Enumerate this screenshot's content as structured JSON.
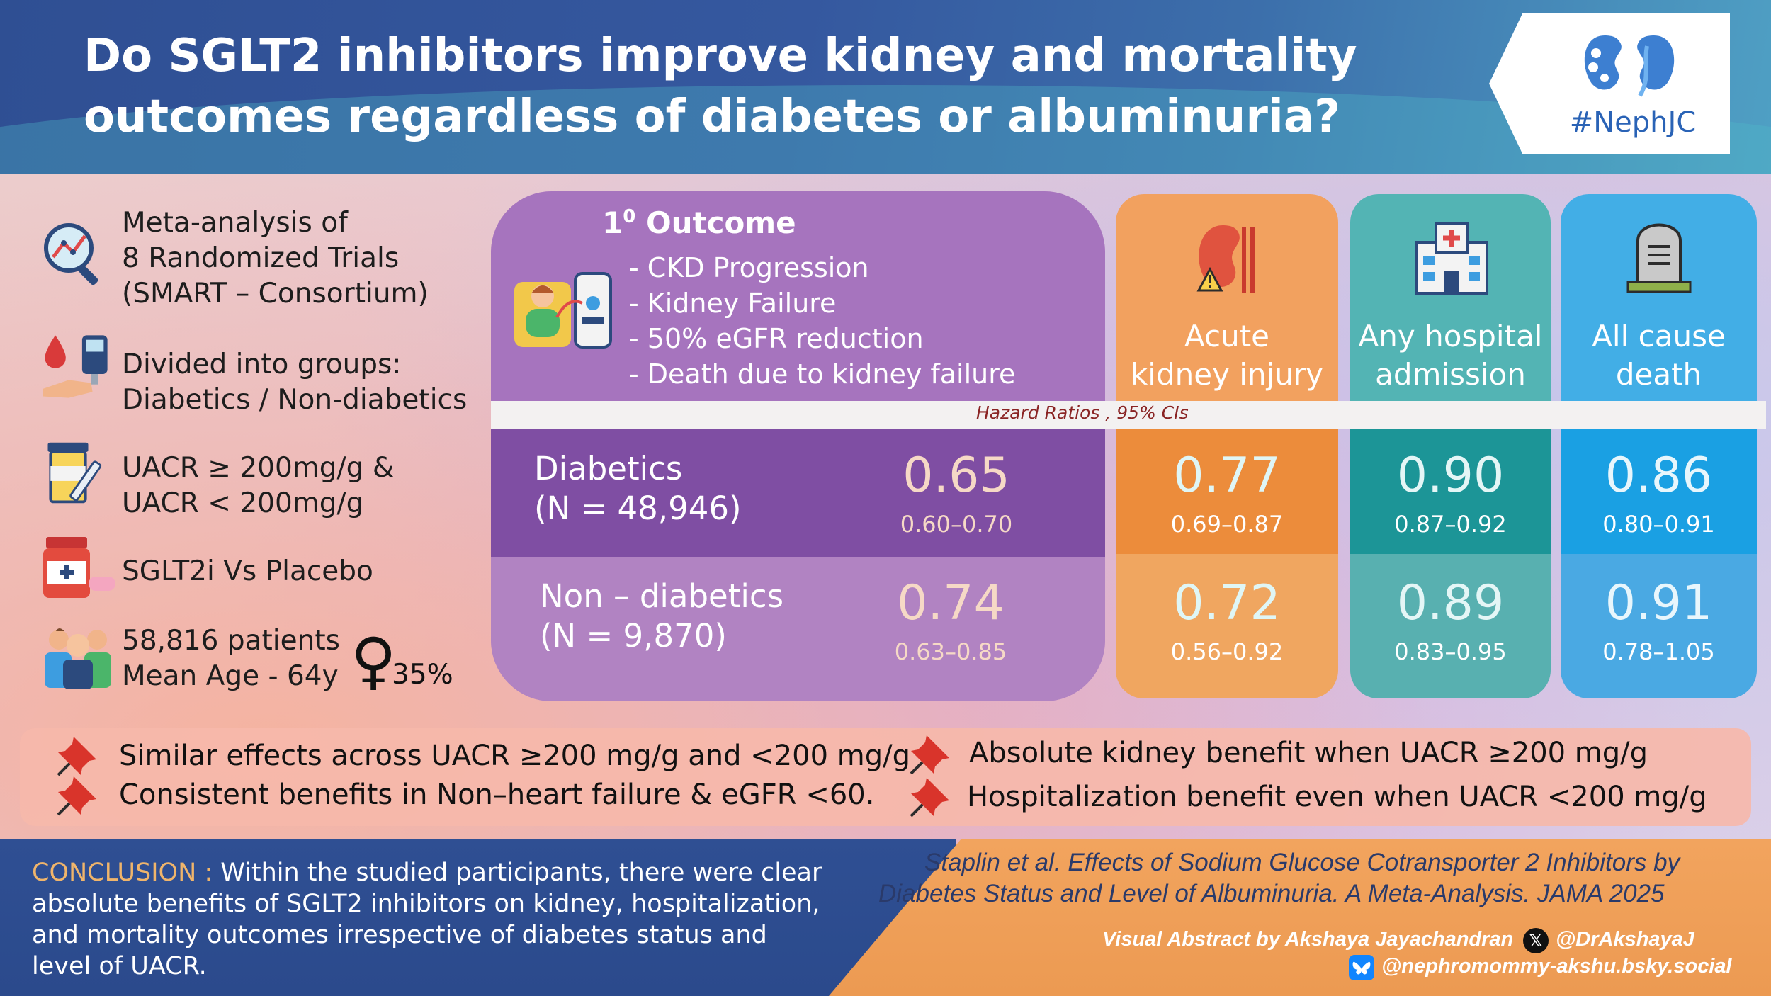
{
  "header": {
    "title_line1": "Do SGLT2 inhibitors improve kidney and mortality",
    "title_line2": "outcomes regardless of diabetes or albuminuria?",
    "logo_text": "#NephJC"
  },
  "study_summary": {
    "items": [
      {
        "icon": "magnifier-chart-icon",
        "lines": [
          "Meta-analysis of",
          "8 Randomized Trials",
          "(SMART – Consortium)"
        ]
      },
      {
        "icon": "glucometer-icon",
        "lines": [
          "Divided into groups:",
          "Diabetics / Non-diabetics"
        ]
      },
      {
        "icon": "urine-sample-icon",
        "lines": [
          "UACR ≥ 200mg/g &",
          "UACR < 200mg/g"
        ]
      },
      {
        "icon": "medicine-bottle-icon",
        "lines": [
          "SGLT2i Vs Placebo"
        ]
      },
      {
        "icon": "patients-group-icon",
        "lines": [
          "58,816 patients",
          "Mean Age - 64y"
        ]
      }
    ],
    "female_symbol": "♀",
    "female_percent": "35%"
  },
  "primary_outcome": {
    "title_base": "1",
    "title_sup": "0",
    "title_rest": " Outcome",
    "components": [
      "- CKD Progression",
      "- Kidney Failure",
      "- 50% eGFR reduction",
      "- Death due to kidney failure"
    ]
  },
  "hr_label": "Hazard Ratios , 95% CIs",
  "groups": [
    {
      "name": "Diabetics",
      "n": "(N = 48,946)"
    },
    {
      "name": "Non – diabetics",
      "n": "(N = 9,870)"
    }
  ],
  "results": {
    "primary": {
      "diabetics": {
        "hr": "0.65",
        "ci": "0.60–0.70"
      },
      "non_diabetics": {
        "hr": "0.74",
        "ci": "0.63–0.85"
      }
    },
    "aki": {
      "heading_line1": "Acute",
      "heading_line2": "kidney injury",
      "icon": "kidney-warning-icon",
      "diabetics": {
        "hr": "0.77",
        "ci": "0.69–0.87"
      },
      "non_diabetics": {
        "hr": "0.72",
        "ci": "0.56–0.92"
      }
    },
    "hospital": {
      "heading_line1": "Any hospital",
      "heading_line2": "admission",
      "icon": "hospital-icon",
      "diabetics": {
        "hr": "0.90",
        "ci": "0.87–0.92"
      },
      "non_diabetics": {
        "hr": "0.89",
        "ci": "0.83–0.95"
      }
    },
    "death": {
      "heading_line1": "All cause",
      "heading_line2": "death",
      "icon": "gravestone-icon",
      "diabetics": {
        "hr": "0.86",
        "ci": "0.80–0.91"
      },
      "non_diabetics": {
        "hr": "0.91",
        "ci": "0.78–1.05"
      }
    }
  },
  "findings": [
    "Similar effects across UACR ≥200 mg/g and <200 mg/g",
    "Consistent benefits in Non–heart failure & eGFR <60.",
    "Absolute kidney benefit when UACR ≥200 mg/g",
    "Hospitalization benefit even when UACR <200 mg/g"
  ],
  "conclusion": {
    "label": "CONCLUSION :",
    "text_line1": " Within the studied participants, there were clear",
    "text_line2": "absolute benefits of SGLT2 inhibitors on kidney, hospitalization,",
    "text_line3": "and mortality outcomes irrespective of diabetes status and",
    "text_line4": "level of UACR."
  },
  "citation": {
    "line1": "Staplin et al. Effects of Sodium Glucose Cotransporter 2 Inhibitors by",
    "line2": "Diabetes Status and Level of Albuminuria. A Meta-Analysis. JAMA 2025"
  },
  "credits": {
    "visual_by": "Visual Abstract by Akshaya Jayachandran",
    "x_handle": "@DrAkshayaJ",
    "bsky_handle": "@nephromommy-akshu.bsky.social"
  },
  "colors": {
    "primary_top": "#a674be",
    "primary_diabetic": "#7f4ea3",
    "primary_nondiabetic": "#b183c2",
    "aki": "#f2a15f",
    "aki_dia": "#ec8c3b",
    "aki_non": "#f0a660",
    "hosp": "#53b4b4",
    "hosp_dia": "#1c9597",
    "hosp_non": "#58b0b0",
    "death": "#42aee6",
    "death_dia": "#1aa0e3",
    "death_non": "#4aa9e3"
  }
}
